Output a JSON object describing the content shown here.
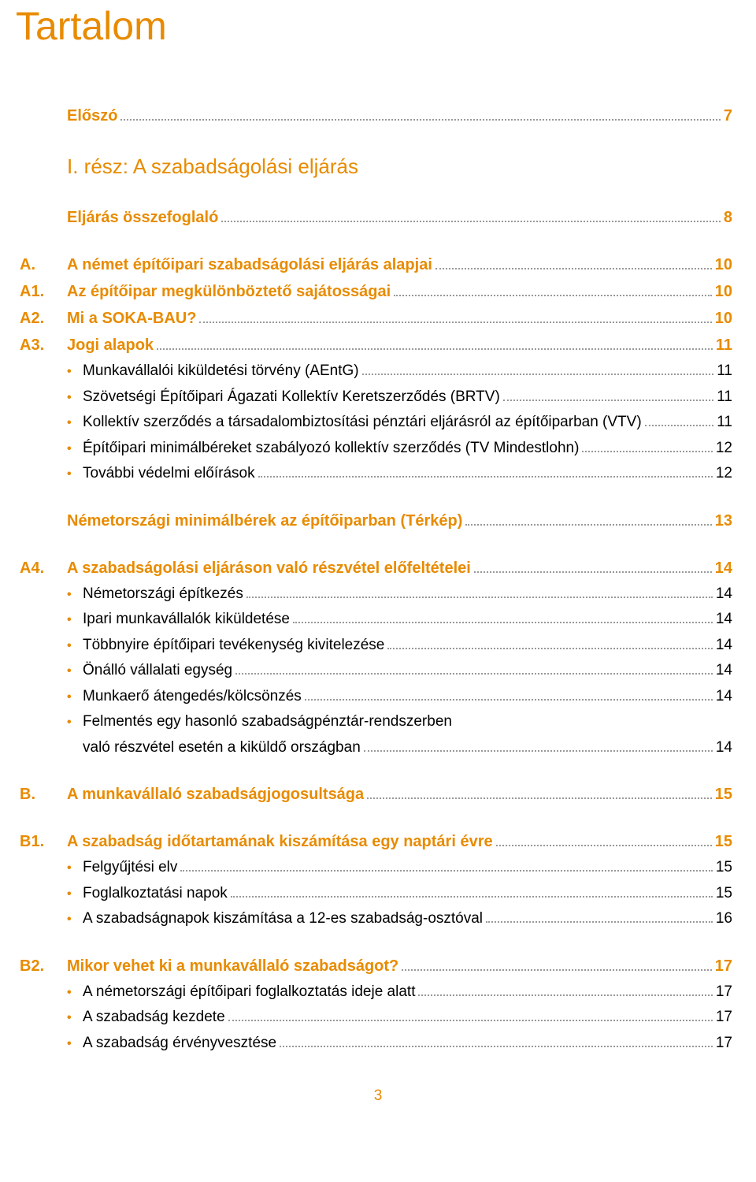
{
  "title": "Tartalom",
  "page_number": "3",
  "colors": {
    "accent": "#e88b00",
    "text": "#000000",
    "leader": "#999999",
    "background": "#ffffff"
  },
  "entries": [
    {
      "type": "heading",
      "prefix": "",
      "label": "Előszó",
      "page": "7"
    },
    {
      "type": "gap"
    },
    {
      "type": "part",
      "prefix": "",
      "label": "I. rész: A szabadságolási eljárás"
    },
    {
      "type": "gap"
    },
    {
      "type": "heading",
      "prefix": "",
      "label": "Eljárás összefoglaló",
      "page": "8"
    },
    {
      "type": "gap"
    },
    {
      "type": "heading",
      "prefix": "A.",
      "label": "A német építőipari szabadságolási eljárás alapjai",
      "page": "10"
    },
    {
      "type": "heading",
      "prefix": "A1.",
      "label": "Az építőipar megkülönböztető sajátosságai",
      "page": "10"
    },
    {
      "type": "heading",
      "prefix": "A2.",
      "label": "Mi a SOKA-BAU?",
      "page": "10"
    },
    {
      "type": "heading",
      "prefix": "A3.",
      "label": "Jogi alapok",
      "page": "11"
    },
    {
      "type": "bullet",
      "label": "Munkavállalói kiküldetési törvény (AEntG)",
      "page": "11"
    },
    {
      "type": "bullet",
      "label": "Szövetségi Építőipari Ágazati Kollektív Keretszerződés (BRTV)",
      "page": "11"
    },
    {
      "type": "bullet",
      "label": "Kollektív szerződés a társadalombiztosítási pénztári eljárásról az építőiparban (VTV)",
      "page": "11"
    },
    {
      "type": "bullet",
      "label": "Építőipari minimálbéreket szabályozó kollektív szerződés (TV Mindestlohn)",
      "page": "12"
    },
    {
      "type": "bullet",
      "label": "További védelmi előírások",
      "page": "12"
    },
    {
      "type": "gap"
    },
    {
      "type": "heading",
      "prefix": "",
      "label": "Németországi minimálbérek az építőiparban (Térkép)",
      "page": "13"
    },
    {
      "type": "gap"
    },
    {
      "type": "heading",
      "prefix": "A4.",
      "label": "A szabadságolási eljáráson való részvétel előfeltételei",
      "page": "14"
    },
    {
      "type": "bullet",
      "label": "Németországi építkezés",
      "page": "14"
    },
    {
      "type": "bullet",
      "label": "Ipari munkavállalók kiküldetése",
      "page": "14"
    },
    {
      "type": "bullet",
      "label": "Többnyire építőipari tevékenység kivitelezése",
      "page": "14"
    },
    {
      "type": "bullet",
      "label": "Önálló vállalati egység",
      "page": "14"
    },
    {
      "type": "bullet",
      "label": "Munkaerő átengedés/kölcsönzés",
      "page": "14"
    },
    {
      "type": "bullet-nowrap-line1",
      "label": "Felmentés egy hasonló szabadságpénztár-rendszerben"
    },
    {
      "type": "wrap-line2",
      "label": "való részvétel esetén a kiküldő országban",
      "page": "14"
    },
    {
      "type": "gap"
    },
    {
      "type": "heading",
      "prefix": "B.",
      "label": "A munkavállaló szabadságjogosultsága",
      "page": "15"
    },
    {
      "type": "gap"
    },
    {
      "type": "heading",
      "prefix": "B1.",
      "label": "A szabadság időtartamának kiszámítása egy naptári évre",
      "page": "15"
    },
    {
      "type": "bullet",
      "label": "Felgyűjtési elv",
      "page": "15"
    },
    {
      "type": "bullet",
      "label": "Foglalkoztatási napok",
      "page": "15"
    },
    {
      "type": "bullet",
      "label": "A szabadságnapok kiszámítása a 12-es szabadság-osztóval",
      "page": "16"
    },
    {
      "type": "gap"
    },
    {
      "type": "heading",
      "prefix": "B2.",
      "label": "Mikor vehet ki a munkavállaló szabadságot?",
      "page": "17"
    },
    {
      "type": "bullet",
      "label": "A németországi építőipari foglalkoztatás ideje alatt",
      "page": "17"
    },
    {
      "type": "bullet",
      "label": "A szabadság kezdete",
      "page": "17"
    },
    {
      "type": "bullet",
      "label": "A szabadság érvényvesztése",
      "page": "17"
    }
  ]
}
